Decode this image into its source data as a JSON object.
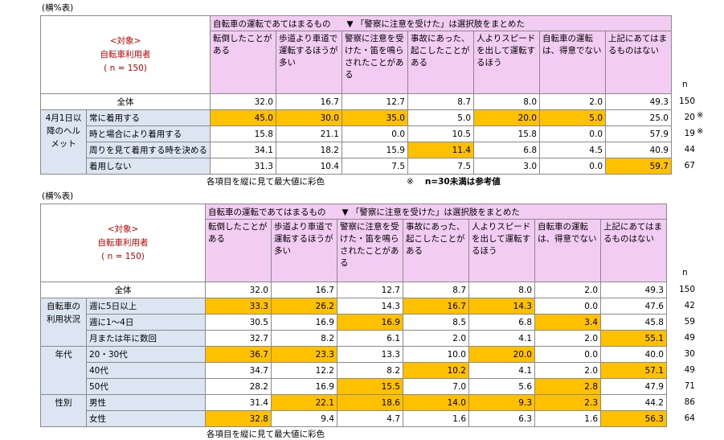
{
  "chart_data": [
    {
      "type": "table",
      "caption": "(横%表)",
      "target_lines": [
        "<対象>",
        "自転車利用者",
        "( n = 150)"
      ],
      "group_header": "自転車の運転であてはまるもの",
      "group_header_note": "▼ 「警察に注意を受けた」は選択肢をまとめた",
      "columns": [
        "転倒したことがある",
        "歩道より車道で運転するほうが多い",
        "警察に注意を受けた・笛を鳴らされたことがある",
        "事故にあった、起こしたことがある",
        "人よりスピードを出して運転するほう",
        "自転車の運転は、得意でない",
        "上記にあてはまるものはない"
      ],
      "n_label": "n",
      "total": {
        "label": "全体",
        "values": [
          32.0,
          16.7,
          12.7,
          8.7,
          8.0,
          2.0,
          49.3
        ],
        "n": 150
      },
      "groups": [
        {
          "label": "4月1日以降のヘルメット",
          "rows": [
            {
              "label": "常に着用する",
              "values": [
                45.0,
                30.0,
                35.0,
                5.0,
                20.0,
                5.0,
                25.0
              ],
              "highlight": [
                0,
                1,
                2,
                4,
                5
              ],
              "n": 20,
              "mark": "※"
            },
            {
              "label": "時と場合により着用する",
              "values": [
                15.8,
                21.1,
                0.0,
                10.5,
                15.8,
                0.0,
                57.9
              ],
              "highlight": [],
              "n": 19,
              "mark": "※"
            },
            {
              "label": "周りを見て着用する時を決める",
              "values": [
                34.1,
                18.2,
                15.9,
                11.4,
                6.8,
                4.5,
                40.9
              ],
              "highlight": [
                3
              ],
              "n": 44,
              "mark": ""
            },
            {
              "label": "着用しない",
              "values": [
                31.3,
                10.4,
                7.5,
                7.5,
                3.0,
                0.0,
                59.7
              ],
              "highlight": [
                6
              ],
              "n": 67,
              "mark": ""
            }
          ]
        }
      ],
      "footnote_left": "各項目を縦に見て最大値に彩色",
      "footnote_right_mark": "※",
      "footnote_right": "n=30未満は参考値"
    },
    {
      "type": "table",
      "caption": "(横%表)",
      "target_lines": [
        "<対象>",
        "自転車利用者",
        "( n = 150)"
      ],
      "group_header": "自転車の運転であてはまるもの",
      "group_header_note": "▼ 「警察に注意を受けた」は選択肢をまとめた",
      "columns": [
        "転倒したことがある",
        "歩道より車道で運転するほうが多い",
        "警察に注意を受けた・笛を鳴らされたことがある",
        "事故にあった、起こしたことがある",
        "人よりスピードを出して運転するほう",
        "自転車の運転は、得意でない",
        "上記にあてはまるものはない"
      ],
      "n_label": "n",
      "total": {
        "label": "全体",
        "values": [
          32.0,
          16.7,
          12.7,
          8.7,
          8.0,
          2.0,
          49.3
        ],
        "n": 150
      },
      "groups": [
        {
          "label": "自転車の利用状況",
          "rows": [
            {
              "label": "週に5日以上",
              "values": [
                33.3,
                26.2,
                14.3,
                16.7,
                14.3,
                0.0,
                47.6
              ],
              "highlight": [
                0,
                1,
                3,
                4
              ],
              "n": 42,
              "mark": ""
            },
            {
              "label": "週に1～4日",
              "values": [
                30.5,
                16.9,
                16.9,
                8.5,
                6.8,
                3.4,
                45.8
              ],
              "highlight": [
                2,
                5
              ],
              "n": 59,
              "mark": ""
            },
            {
              "label": "月または年に数回",
              "values": [
                32.7,
                8.2,
                6.1,
                2.0,
                4.1,
                2.0,
                55.1
              ],
              "highlight": [
                6
              ],
              "n": 49,
              "mark": ""
            }
          ]
        },
        {
          "label": "年代",
          "rows": [
            {
              "label": "20・30代",
              "values": [
                36.7,
                23.3,
                13.3,
                10.0,
                20.0,
                0.0,
                40.0
              ],
              "highlight": [
                0,
                1,
                4
              ],
              "n": 30,
              "mark": ""
            },
            {
              "label": "40代",
              "values": [
                34.7,
                12.2,
                8.2,
                10.2,
                4.1,
                2.0,
                57.1
              ],
              "highlight": [
                3,
                6
              ],
              "n": 49,
              "mark": ""
            },
            {
              "label": "50代",
              "values": [
                28.2,
                16.9,
                15.5,
                7.0,
                5.6,
                2.8,
                47.9
              ],
              "highlight": [
                2,
                5
              ],
              "n": 71,
              "mark": ""
            }
          ]
        },
        {
          "label": "性別",
          "rows": [
            {
              "label": "男性",
              "values": [
                31.4,
                22.1,
                18.6,
                14.0,
                9.3,
                2.3,
                44.2
              ],
              "highlight": [
                1,
                2,
                3,
                4,
                5
              ],
              "n": 86,
              "mark": ""
            },
            {
              "label": "女性",
              "values": [
                32.8,
                9.4,
                4.7,
                1.6,
                6.3,
                1.6,
                56.3
              ],
              "highlight": [
                0,
                6
              ],
              "n": 64,
              "mark": ""
            }
          ]
        }
      ],
      "footnote_left": "各項目を縦に見て最大値に彩色",
      "footnote_right_mark": "",
      "footnote_right": ""
    }
  ]
}
